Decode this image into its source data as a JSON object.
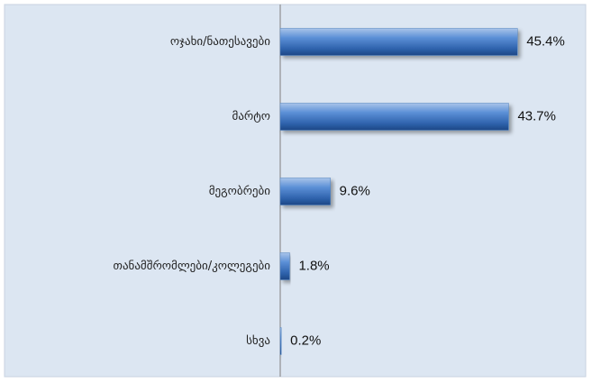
{
  "chart_data": {
    "type": "bar",
    "orientation": "horizontal",
    "categories": [
      "ოჯახი/ნათესავები",
      "მარტო",
      "მეგობრები",
      "თანამშრომლები/კოლეგები",
      "სხვა"
    ],
    "values": [
      45.4,
      43.7,
      9.6,
      1.8,
      0.2
    ],
    "value_labels": [
      "45.4%",
      "43.7%",
      "9.6%",
      "1.8%",
      "0.2%"
    ],
    "color": "#4f81bd",
    "xlim": [
      0,
      50
    ]
  }
}
